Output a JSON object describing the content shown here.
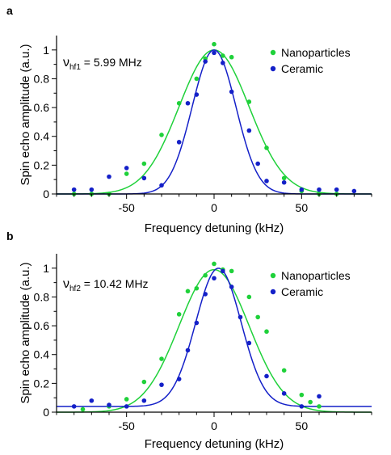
{
  "chart_data": [
    {
      "type": "scatter",
      "panel_label": "a",
      "title": "",
      "xlabel": "Frequency detuning (kHz)",
      "ylabel": "Spin echo amplitude (a.u.)",
      "xlim": [
        -90,
        90
      ],
      "ylim": [
        0,
        1.1
      ],
      "x_ticks": [
        -50,
        0,
        50
      ],
      "y_ticks": [
        0,
        0.2,
        0.4,
        0.6,
        0.8,
        1
      ],
      "grid": false,
      "legend_position": "top-right",
      "annotation": {
        "symbol": "ν",
        "subscript": "hf1",
        "text": " = 5.99 MHz"
      },
      "series": [
        {
          "name": "Nanoparticles",
          "color": "#1fd13a",
          "points": [
            [
              -80,
              0.0
            ],
            [
              -70,
              0.0
            ],
            [
              -60,
              0.0
            ],
            [
              -50,
              0.14
            ],
            [
              -40,
              0.21
            ],
            [
              -30,
              0.41
            ],
            [
              -20,
              0.63
            ],
            [
              -10,
              0.8
            ],
            [
              -5,
              0.94
            ],
            [
              0,
              1.04
            ],
            [
              5,
              0.96
            ],
            [
              10,
              0.95
            ],
            [
              20,
              0.64
            ],
            [
              30,
              0.32
            ],
            [
              40,
              0.11
            ],
            [
              50,
              0.02
            ],
            [
              60,
              0.0
            ],
            [
              70,
              0.0
            ]
          ],
          "fit": {
            "model": "gaussian",
            "amplitude": 1.0,
            "center": 0,
            "sigma": 20,
            "offset": 0
          }
        },
        {
          "name": "Ceramic",
          "color": "#1420c8",
          "points": [
            [
              -80,
              0.03
            ],
            [
              -70,
              0.03
            ],
            [
              -60,
              0.12
            ],
            [
              -50,
              0.18
            ],
            [
              -40,
              0.11
            ],
            [
              -30,
              0.06
            ],
            [
              -20,
              0.36
            ],
            [
              -15,
              0.63
            ],
            [
              -10,
              0.69
            ],
            [
              -5,
              0.92
            ],
            [
              0,
              0.98
            ],
            [
              5,
              0.91
            ],
            [
              10,
              0.71
            ],
            [
              20,
              0.44
            ],
            [
              25,
              0.21
            ],
            [
              30,
              0.09
            ],
            [
              40,
              0.08
            ],
            [
              50,
              0.03
            ],
            [
              60,
              0.03
            ],
            [
              70,
              0.03
            ],
            [
              80,
              0.02
            ]
          ],
          "fit": {
            "model": "gaussian",
            "amplitude": 1.0,
            "center": 0,
            "sigma": 12.5,
            "offset": 0
          }
        }
      ]
    },
    {
      "type": "scatter",
      "panel_label": "b",
      "title": "",
      "xlabel": "Frequency detuning (kHz)",
      "ylabel": "Spin echo amplitude (a.u.)",
      "xlim": [
        -90,
        90
      ],
      "ylim": [
        0,
        1.1
      ],
      "x_ticks": [
        -50,
        0,
        50
      ],
      "y_ticks": [
        0,
        0.2,
        0.4,
        0.6,
        0.8,
        1
      ],
      "grid": false,
      "legend_position": "top-right",
      "annotation": {
        "symbol": "ν",
        "subscript": "hf2",
        "text": " = 10.42 MHz"
      },
      "series": [
        {
          "name": "Nanoparticles",
          "color": "#1fd13a",
          "points": [
            [
              -75,
              0.02
            ],
            [
              -60,
              0.04
            ],
            [
              -50,
              0.09
            ],
            [
              -40,
              0.21
            ],
            [
              -30,
              0.37
            ],
            [
              -20,
              0.68
            ],
            [
              -15,
              0.84
            ],
            [
              -10,
              0.86
            ],
            [
              -5,
              0.95
            ],
            [
              0,
              1.03
            ],
            [
              5,
              0.99
            ],
            [
              10,
              0.98
            ],
            [
              20,
              0.8
            ],
            [
              25,
              0.66
            ],
            [
              30,
              0.56
            ],
            [
              40,
              0.29
            ],
            [
              50,
              0.12
            ],
            [
              55,
              0.07
            ],
            [
              60,
              0.04
            ]
          ],
          "fit": {
            "model": "gaussian",
            "amplitude": 0.99,
            "center": 0,
            "sigma": 20,
            "offset": 0
          }
        },
        {
          "name": "Ceramic",
          "color": "#1420c8",
          "points": [
            [
              -80,
              0.04
            ],
            [
              -70,
              0.08
            ],
            [
              -60,
              0.05
            ],
            [
              -50,
              0.04
            ],
            [
              -40,
              0.08
            ],
            [
              -30,
              0.19
            ],
            [
              -20,
              0.23
            ],
            [
              -15,
              0.43
            ],
            [
              -10,
              0.62
            ],
            [
              -5,
              0.82
            ],
            [
              0,
              0.93
            ],
            [
              5,
              0.98
            ],
            [
              10,
              0.87
            ],
            [
              15,
              0.66
            ],
            [
              20,
              0.48
            ],
            [
              30,
              0.25
            ],
            [
              40,
              0.13
            ],
            [
              50,
              0.04
            ],
            [
              60,
              0.11
            ]
          ],
          "fit": {
            "model": "gaussian",
            "amplitude": 0.96,
            "center": 2.5,
            "sigma": 13,
            "offset": 0.04
          }
        }
      ]
    }
  ]
}
